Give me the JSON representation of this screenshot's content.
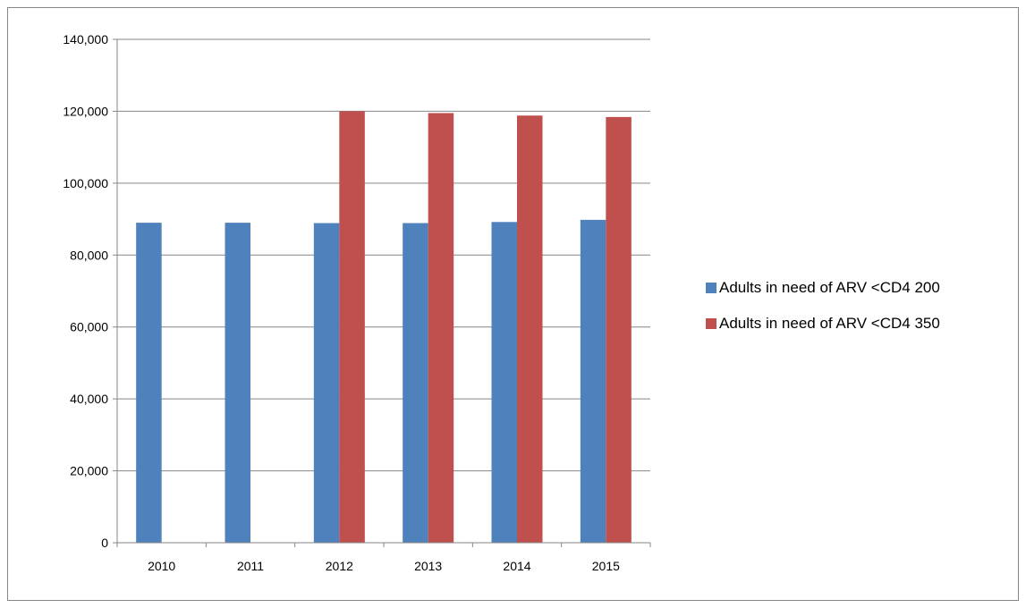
{
  "chart_data": {
    "type": "bar",
    "title": "",
    "xlabel": "",
    "ylabel": "",
    "categories": [
      "2010",
      "2011",
      "2012",
      "2013",
      "2014",
      "2015"
    ],
    "series": [
      {
        "name": "Adults in need of ARV <CD4 200",
        "color": "#4F81BD",
        "values": [
          89000,
          89000,
          88900,
          88900,
          89200,
          89800
        ]
      },
      {
        "name": "Adults in need of ARV <CD4 350",
        "color": "#C0504D",
        "values": [
          null,
          null,
          120000,
          119500,
          118800,
          118400
        ]
      }
    ],
    "ylim": [
      0,
      140000
    ],
    "yticks": [
      0,
      20000,
      40000,
      60000,
      80000,
      100000,
      120000,
      140000
    ],
    "ytick_labels": [
      "0",
      "20,000",
      "40,000",
      "60,000",
      "80,000",
      "100,000",
      "120,000",
      "140,000"
    ],
    "grid": true,
    "legend_position": "right"
  }
}
